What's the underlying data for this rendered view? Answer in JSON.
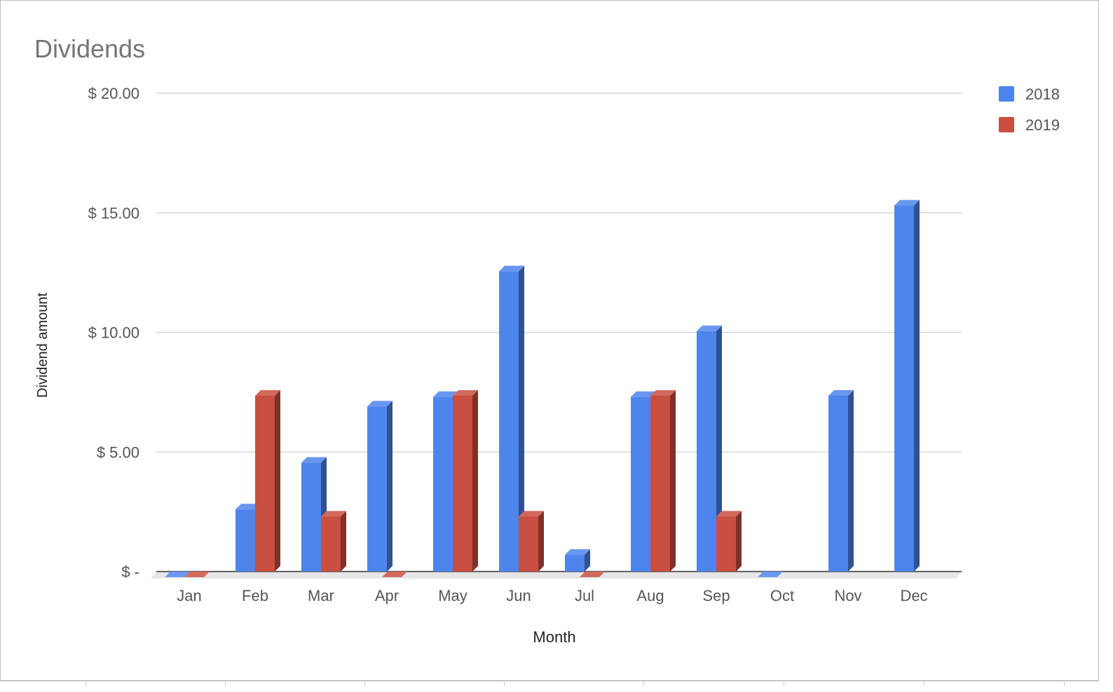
{
  "chart_data": {
    "type": "bar",
    "title": "Dividends",
    "xlabel": "Month",
    "ylabel": "Dividend amount",
    "categories": [
      "Jan",
      "Feb",
      "Mar",
      "Apr",
      "May",
      "Jun",
      "Jul",
      "Aug",
      "Sep",
      "Oct",
      "Nov",
      "Dec"
    ],
    "series": [
      {
        "name": "2018",
        "color": "#4e85ec",
        "values": [
          0,
          2.6,
          4.55,
          6.9,
          7.3,
          12.55,
          0.7,
          7.3,
          10.05,
          0,
          7.35,
          15.3
        ]
      },
      {
        "name": "2019",
        "color": "#c94f40",
        "values": [
          0,
          7.35,
          2.3,
          0,
          7.35,
          2.3,
          0,
          7.35,
          2.3,
          null,
          null,
          null
        ]
      }
    ],
    "ylim": [
      0,
      20
    ],
    "yticks": [
      0,
      5,
      10,
      15,
      20
    ],
    "ytick_labels": [
      "$ -",
      "$ 5.00",
      "$ 10.00",
      "$ 15.00",
      "$ 20.00"
    ],
    "grid": true,
    "legend_position": "right",
    "style": "3d-bar"
  }
}
